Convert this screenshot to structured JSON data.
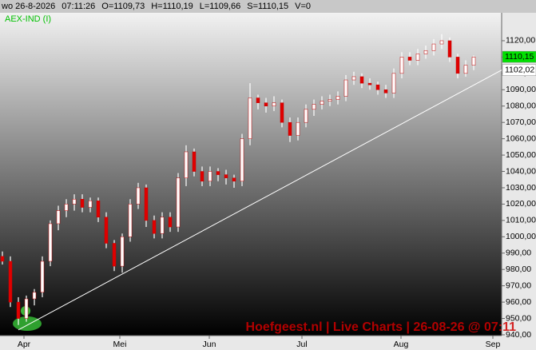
{
  "chart_data": {
    "type": "ohlc",
    "header_items": [
      "wo 26-8-2026",
      "07:11:26",
      "O=1109,73",
      "H=1110,19",
      "L=1109,66",
      "S=1110,15",
      "V=0"
    ],
    "instrument": "AEX-IND (I)",
    "watermark": "Hoefgeest.nl | Live Charts | 26-08-26 @ 07:11",
    "x": [
      0,
      1,
      2,
      3,
      4,
      5,
      6,
      7,
      8,
      9,
      10,
      11,
      12,
      13,
      14,
      15,
      16,
      17,
      18,
      19,
      20,
      21,
      22,
      23,
      24,
      25,
      26,
      27,
      28,
      29,
      30,
      31,
      32,
      33,
      34,
      35,
      36,
      37,
      38,
      39,
      40,
      41,
      42,
      43,
      44,
      45,
      46,
      47,
      48,
      49,
      50,
      51,
      52,
      53,
      54,
      55,
      56,
      57,
      58,
      59
    ],
    "open": [
      988,
      985,
      960,
      950,
      962,
      966,
      985,
      1008,
      1016,
      1020,
      1023,
      1018,
      1022,
      1012,
      996,
      982,
      1000,
      1020,
      1030,
      1010,
      1002,
      1012,
      1006,
      1036,
      1052,
      1040,
      1034,
      1040,
      1038,
      1036,
      1034,
      1060,
      1085,
      1082,
      1080,
      1082,
      1070,
      1062,
      1070,
      1078,
      1081,
      1083,
      1084,
      1086,
      1096,
      1098,
      1094,
      1093,
      1090,
      1088,
      1100,
      1110,
      1108,
      1112,
      1114,
      1118,
      1120,
      1110,
      1100,
      1105
    ],
    "high": [
      991,
      988,
      963,
      964,
      968,
      988,
      1010,
      1019,
      1023,
      1026,
      1026,
      1024,
      1024,
      1015,
      998,
      1002,
      1023,
      1033,
      1032,
      1013,
      1015,
      1015,
      1039,
      1056,
      1054,
      1043,
      1043,
      1042,
      1041,
      1038,
      1063,
      1094,
      1087,
      1085,
      1086,
      1084,
      1073,
      1073,
      1081,
      1084,
      1086,
      1087,
      1089,
      1099,
      1101,
      1100,
      1097,
      1095,
      1093,
      1103,
      1113,
      1113,
      1115,
      1117,
      1121,
      1124,
      1122,
      1112,
      1108,
      1111
    ],
    "low": [
      983,
      957,
      946,
      948,
      958,
      963,
      982,
      1004,
      1012,
      1016,
      1015,
      1015,
      1009,
      993,
      979,
      978,
      997,
      1017,
      1006,
      999,
      999,
      1003,
      1003,
      1031,
      1037,
      1031,
      1031,
      1034,
      1032,
      1030,
      1031,
      1056,
      1078,
      1076,
      1077,
      1067,
      1058,
      1059,
      1067,
      1074,
      1078,
      1080,
      1081,
      1083,
      1093,
      1091,
      1090,
      1087,
      1085,
      1085,
      1097,
      1105,
      1105,
      1109,
      1111,
      1115,
      1107,
      1097,
      1098,
      1102
    ],
    "close": [
      985,
      960,
      950,
      962,
      966,
      985,
      1008,
      1016,
      1020,
      1023,
      1018,
      1022,
      1012,
      996,
      982,
      1000,
      1020,
      1030,
      1010,
      1002,
      1012,
      1006,
      1036,
      1052,
      1040,
      1034,
      1040,
      1038,
      1036,
      1034,
      1060,
      1085,
      1082,
      1080,
      1082,
      1070,
      1062,
      1070,
      1078,
      1081,
      1083,
      1084,
      1086,
      1096,
      1098,
      1094,
      1093,
      1090,
      1088,
      1100,
      1110,
      1108,
      1112,
      1114,
      1118,
      1120,
      1110,
      1100,
      1105,
      1110
    ],
    "up_color": "#ffffff",
    "down_color": "#e00000",
    "xlim": [
      -0.3,
      62.5
    ],
    "xticks": [
      {
        "value": 2.7,
        "label": "Apr"
      },
      {
        "value": 14.7,
        "label": "Mei"
      },
      {
        "value": 25.9,
        "label": "Jun"
      },
      {
        "value": 37.5,
        "label": "Jul"
      },
      {
        "value": 49.9,
        "label": "Aug"
      },
      {
        "value": 61.4,
        "label": "Sep"
      }
    ],
    "ylim": [
      939.5,
      1137.1
    ],
    "yticks": [
      {
        "value": 940,
        "label": "940,00"
      },
      {
        "value": 950,
        "label": "950,00"
      },
      {
        "value": 960,
        "label": "960,00"
      },
      {
        "value": 970,
        "label": "970,00"
      },
      {
        "value": 980,
        "label": "980,00"
      },
      {
        "value": 990,
        "label": "990,00"
      },
      {
        "value": 1000,
        "label": "1000,00"
      },
      {
        "value": 1010,
        "label": "1010,00"
      },
      {
        "value": 1020,
        "label": "1020,00"
      },
      {
        "value": 1030,
        "label": "1030,00"
      },
      {
        "value": 1040,
        "label": "1040,00"
      },
      {
        "value": 1050,
        "label": "1050,00"
      },
      {
        "value": 1060,
        "label": "1060,00"
      },
      {
        "value": 1070,
        "label": "1070,00"
      },
      {
        "value": 1080,
        "label": "1080,00"
      },
      {
        "value": 1090,
        "label": "1090,00"
      },
      {
        "value": 1100,
        "label": "1100,00"
      },
      {
        "value": 1110,
        "label": "1110,00"
      },
      {
        "value": 1120,
        "label": "1120,00"
      }
    ],
    "trendline": {
      "x": [
        2,
        62.5
      ],
      "values": [
        943,
        1102.02
      ],
      "color": "#ffffff"
    },
    "markers": [
      {
        "value": 1110.15,
        "label": "1110,15",
        "color": "#00e000"
      },
      {
        "value": 1102.02,
        "label": "1102,02",
        "color": "#ffffff"
      }
    ]
  }
}
